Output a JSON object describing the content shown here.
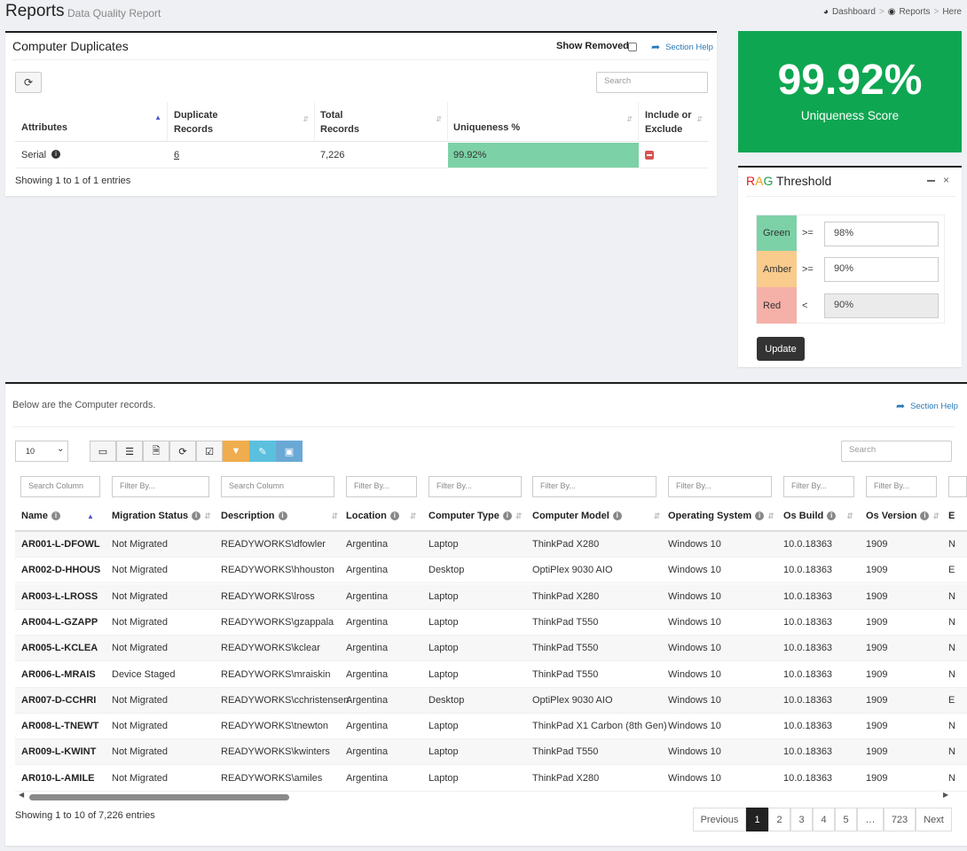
{
  "page": {
    "title": "Reports",
    "subtitle": "Data Quality Report"
  },
  "breadcrumb": [
    "Dashboard",
    "Reports",
    "Here"
  ],
  "duplicates": {
    "title": "Computer Duplicates",
    "show_removed": "Show Removed",
    "section_help": "Section Help",
    "search_placeholder": "Search",
    "columns": [
      "Attributes",
      "Duplicate Records",
      "Total Records",
      "Uniqueness %",
      "Include or Exclude"
    ],
    "row": {
      "attribute": "Serial",
      "duplicates": "6",
      "total": "7,226",
      "uniqueness": "99.92%"
    },
    "footer": "Showing 1 to 1 of 1 entries",
    "uniqueness_color": "#7dd1a7"
  },
  "score": {
    "value": "99.92%",
    "label": "Uniqueness Score",
    "color": "#0fa651"
  },
  "rag": {
    "title_r": "R",
    "title_a": "A",
    "title_g": "G",
    "title_rest": " Threshold",
    "rows": [
      {
        "label": "Green",
        "op": ">=",
        "value": "98%",
        "color": "#7dd1a7"
      },
      {
        "label": "Amber",
        "op": ">=",
        "value": "90%",
        "color": "#f9cb8c"
      },
      {
        "label": "Red",
        "op": "<",
        "value": "90%",
        "color": "#f5b0a8"
      }
    ],
    "update": "Update"
  },
  "records": {
    "intro": "Below are the Computer records.",
    "section_help": "Section Help",
    "page_size": "10",
    "search_placeholder": "Search",
    "filters": [
      "Search Column",
      "Filter By...",
      "Search Column",
      "Filter By...",
      "Filter By...",
      "Filter By...",
      "Filter By...",
      "Filter By...",
      "Filter By..."
    ],
    "columns": [
      "Name",
      "Migration Status",
      "Description",
      "Location",
      "Computer Type",
      "Computer Model",
      "Operating System",
      "Os Build",
      "Os Version"
    ],
    "extra_col_letter": "E",
    "rows": [
      [
        "AR001-L-DFOWL",
        "Not Migrated",
        "READYWORKS\\dfowler",
        "Argentina",
        "Laptop",
        "ThinkPad X280",
        "Windows 10",
        "10.0.18363",
        "1909",
        "N"
      ],
      [
        "AR002-D-HHOUS",
        "Not Migrated",
        "READYWORKS\\hhouston",
        "Argentina",
        "Desktop",
        "OptiPlex 9030 AIO",
        "Windows 10",
        "10.0.18363",
        "1909",
        "E"
      ],
      [
        "AR003-L-LROSS",
        "Not Migrated",
        "READYWORKS\\lross",
        "Argentina",
        "Laptop",
        "ThinkPad X280",
        "Windows 10",
        "10.0.18363",
        "1909",
        "N"
      ],
      [
        "AR004-L-GZAPP",
        "Not Migrated",
        "READYWORKS\\gzappala",
        "Argentina",
        "Laptop",
        "ThinkPad T550",
        "Windows 10",
        "10.0.18363",
        "1909",
        "N"
      ],
      [
        "AR005-L-KCLEA",
        "Not Migrated",
        "READYWORKS\\kclear",
        "Argentina",
        "Laptop",
        "ThinkPad T550",
        "Windows 10",
        "10.0.18363",
        "1909",
        "N"
      ],
      [
        "AR006-L-MRAIS",
        "Device Staged",
        "READYWORKS\\mraiskin",
        "Argentina",
        "Laptop",
        "ThinkPad T550",
        "Windows 10",
        "10.0.18363",
        "1909",
        "N"
      ],
      [
        "AR007-D-CCHRI",
        "Not Migrated",
        "READYWORKS\\cchristensen",
        "Argentina",
        "Desktop",
        "OptiPlex 9030 AIO",
        "Windows 10",
        "10.0.18363",
        "1909",
        "E"
      ],
      [
        "AR008-L-TNEWT",
        "Not Migrated",
        "READYWORKS\\tnewton",
        "Argentina",
        "Laptop",
        "ThinkPad X1 Carbon (8th Gen)",
        "Windows 10",
        "10.0.18363",
        "1909",
        "N"
      ],
      [
        "AR009-L-KWINT",
        "Not Migrated",
        "READYWORKS\\kwinters",
        "Argentina",
        "Laptop",
        "ThinkPad T550",
        "Windows 10",
        "10.0.18363",
        "1909",
        "N"
      ],
      [
        "AR010-L-AMILE",
        "Not Migrated",
        "READYWORKS\\amiles",
        "Argentina",
        "Laptop",
        "ThinkPad X280",
        "Windows 10",
        "10.0.18363",
        "1909",
        "N"
      ]
    ],
    "footer": "Showing 1 to 10 of 7,226 entries",
    "pagination": [
      "Previous",
      "1",
      "2",
      "3",
      "4",
      "5",
      "…",
      "723",
      "Next"
    ]
  }
}
